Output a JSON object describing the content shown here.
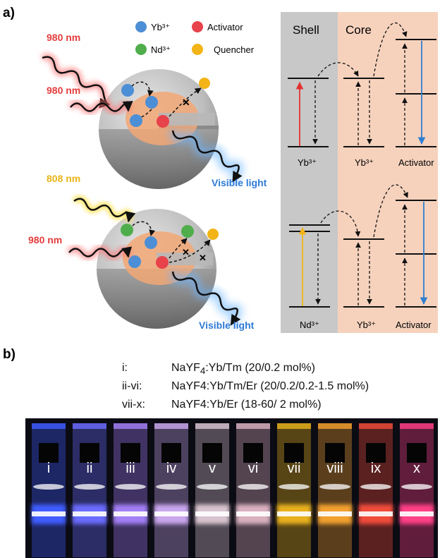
{
  "panel_a": {
    "label": "a)",
    "legend": {
      "yb": {
        "text": "Yb³⁺",
        "color": "#4d8fd6"
      },
      "activator": {
        "text": "Activator",
        "color": "#e8424a"
      },
      "nd": {
        "text": "Nd³⁺",
        "color": "#4fae4b"
      },
      "quencher": {
        "text": "Quencher",
        "color": "#f2b416"
      }
    },
    "top_particle": {
      "excitation_1": "980 nm",
      "excitation_2": "980 nm",
      "emission": "Visible light"
    },
    "bottom_particle": {
      "excitation_1": "808 nm",
      "excitation_2": "980 nm",
      "emission": "Visible light"
    },
    "energy_diagram": {
      "shell_title": "Shell",
      "core_title": "Core",
      "top_row": [
        "Yb³⁺",
        "Yb³⁺",
        "Activator"
      ],
      "bottom_row": [
        "Nd³⁺",
        "Yb³⁺",
        "Activator"
      ],
      "colors": {
        "shell_bg": "#c8c8c8",
        "core_bg": "#f6d2bd",
        "arrow_980": "#e23030",
        "arrow_808": "#f2b416",
        "emission": "#2f7fd0"
      }
    }
  },
  "panel_b": {
    "label": "b)",
    "compositions": [
      {
        "id": "i:",
        "formula_html": "NaYF<sub>4</sub>:Yb/Tm (20/0.2 mol%)"
      },
      {
        "id": "ii-vi:",
        "formula_html": "NaYF4:Yb/Tm/Er (20/0.2/0.2-1.5 mol%)"
      },
      {
        "id": "vii-x:",
        "formula_html": "NaYF4:Yb/Er (18-60/ 2 mol%)"
      }
    ],
    "cuvettes": [
      {
        "label": "i",
        "color": "#3f5cff"
      },
      {
        "label": "ii",
        "color": "#6b6cff"
      },
      {
        "label": "iii",
        "color": "#a27ff5"
      },
      {
        "label": "iv",
        "color": "#c9a6ee"
      },
      {
        "label": "v",
        "color": "#d8c4cf"
      },
      {
        "label": "vi",
        "color": "#d9b0bf"
      },
      {
        "label": "vii",
        "color": "#e8b11a"
      },
      {
        "label": "viii",
        "color": "#f2a02e"
      },
      {
        "label": "ix",
        "color": "#f04b3a"
      },
      {
        "label": "x",
        "color": "#ff3f86"
      }
    ]
  }
}
